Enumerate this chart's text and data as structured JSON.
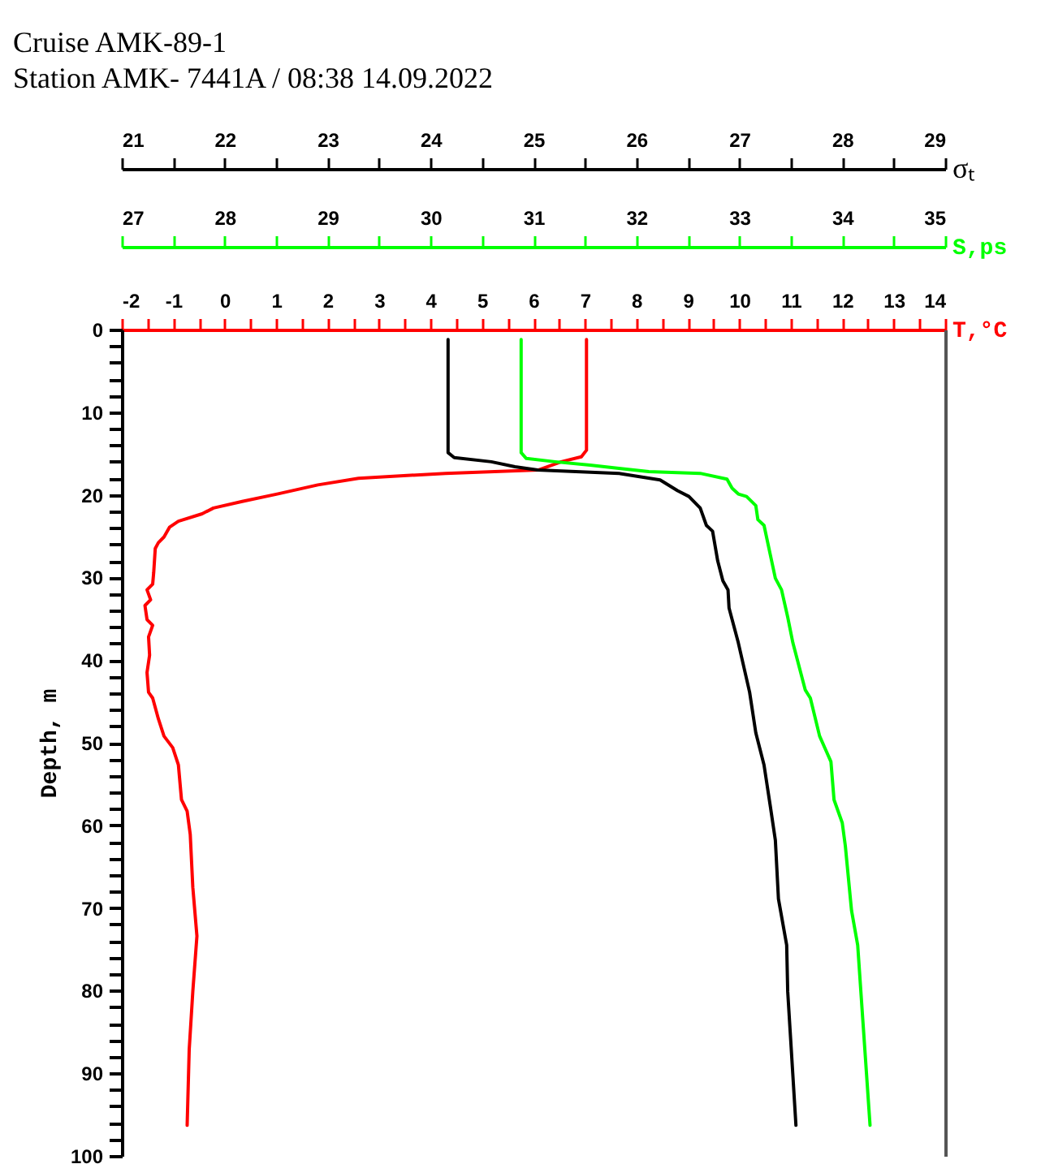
{
  "chart_data": [
    {
      "type": "line",
      "title": "Cruise AMK-89-1",
      "subtitle": "Station AMK- 7441A / 08:38 14.09.2022",
      "xlabel": "T,°C",
      "x2label": "S,ps",
      "ylabel": "Depth, m",
      "xlim": [
        -2,
        14
      ],
      "xticks": [
        -2,
        {
          "value": -1.5,
          "label": null
        },
        -1,
        {
          "value": -0.5,
          "label": null
        },
        0,
        {
          "value": 0.5,
          "label": null
        },
        1,
        {
          "value": 1.5,
          "label": null
        },
        2,
        {
          "value": 2.5,
          "label": null
        },
        3,
        {
          "value": 3.5,
          "label": null
        },
        4,
        {
          "value": 4.5,
          "label": null
        },
        5,
        {
          "value": 5.5,
          "label": null
        },
        6,
        {
          "value": 6.5,
          "label": null
        },
        7,
        {
          "value": 7.5,
          "label": null
        },
        8,
        {
          "value": 8.5,
          "label": null
        },
        9,
        {
          "value": 9.5,
          "label": null
        },
        10,
        {
          "value": 10.5,
          "label": null
        },
        11,
        {
          "value": 11.5,
          "label": null
        },
        12,
        {
          "value": 12.5,
          "label": null
        },
        13,
        {
          "value": 13.5,
          "label": null
        },
        14
      ],
      "x2lim": [
        27,
        35
      ],
      "x2ticks": [
        27,
        {
          "value": 27.5,
          "label": null
        },
        28,
        {
          "value": 28.5,
          "label": null
        },
        29,
        {
          "value": 29.5,
          "label": null
        },
        30,
        {
          "value": 30.5,
          "label": null
        },
        31,
        {
          "value": 31.5,
          "label": null
        },
        32,
        {
          "value": 32.5,
          "label": null
        },
        33,
        {
          "value": 33.5,
          "label": null
        },
        34,
        {
          "value": 34.5,
          "label": null
        },
        35
      ],
      "ylim": [
        100,
        0
      ],
      "yticks": [
        0,
        {
          "value": 2,
          "label": null
        },
        {
          "value": 4,
          "label": null
        },
        {
          "value": 6,
          "label": null
        },
        {
          "value": 8,
          "label": null
        },
        10,
        {
          "value": 12,
          "label": null
        },
        {
          "value": 14,
          "label": null
        },
        {
          "value": 16,
          "label": null
        },
        {
          "value": 18,
          "label": null
        },
        20,
        {
          "value": 22,
          "label": null
        },
        {
          "value": 24,
          "label": null
        },
        {
          "value": 26,
          "label": null
        },
        {
          "value": 28,
          "label": null
        },
        30,
        {
          "value": 32,
          "label": null
        },
        {
          "value": 34,
          "label": null
        },
        {
          "value": 36,
          "label": null
        },
        {
          "value": 38,
          "label": null
        },
        40,
        {
          "value": 42,
          "label": null
        },
        {
          "value": 44,
          "label": null
        },
        {
          "value": 46,
          "label": null
        },
        {
          "value": 48,
          "label": null
        },
        50,
        {
          "value": 52,
          "label": null
        },
        {
          "value": 54,
          "label": null
        },
        {
          "value": 56,
          "label": null
        },
        {
          "value": 58,
          "label": null
        },
        60,
        {
          "value": 62,
          "label": null
        },
        {
          "value": 64,
          "label": null
        },
        {
          "value": 66,
          "label": null
        },
        {
          "value": 68,
          "label": null
        },
        70,
        {
          "value": 72,
          "label": null
        },
        {
          "value": 74,
          "label": null
        },
        {
          "value": 76,
          "label": null
        },
        {
          "value": 78,
          "label": null
        },
        80,
        {
          "value": 82,
          "label": null
        },
        {
          "value": 84,
          "label": null
        },
        {
          "value": 86,
          "label": null
        },
        {
          "value": 88,
          "label": null
        },
        90,
        {
          "value": 92,
          "label": null
        },
        {
          "value": 94,
          "label": null
        },
        {
          "value": 96,
          "label": null
        },
        {
          "value": 98,
          "label": null
        },
        100
      ],
      "series": [
        {
          "color": "#ff0000",
          "x": [
            7.03,
            7.03,
            6.93,
            6.54,
            6.09,
            4.29,
            2.6,
            1.81,
            1.02,
            0.34,
            -0.22,
            -0.44,
            -0.9,
            -1.07,
            -1.18,
            -1.29,
            -1.35,
            -1.38,
            -1.4,
            -1.51,
            -1.44,
            -1.55,
            -1.51,
            -1.4,
            -1.48,
            -1.46,
            -1.51,
            -1.48,
            -1.4,
            -1.29,
            -1.18,
            -1.01,
            -0.9,
            -0.84,
            -0.73,
            -0.67,
            -0.62,
            -0.54,
            -0.62,
            -0.69,
            -0.73
          ],
          "values": [
            1.2,
            14.6,
            15.4,
            16,
            17,
            17.4,
            18,
            18.8,
            19.9,
            20.8,
            21.6,
            22.3,
            23.2,
            23.9,
            25.1,
            25.8,
            26.5,
            29.4,
            30.8,
            31.5,
            32.7,
            33.4,
            35.1,
            35.8,
            37.2,
            39.4,
            41.5,
            43.9,
            44.6,
            47.1,
            49.2,
            50.6,
            52.7,
            56.9,
            58.3,
            61.1,
            67.5,
            73.4,
            80.1,
            87.1,
            96.3
          ]
        },
        {
          "axis": "x2",
          "color": "#00ff00",
          "x": [
            30.88,
            30.88,
            30.93,
            31.21,
            31.55,
            31.83,
            32.12,
            32.62,
            32.88,
            32.93,
            32.99,
            33.07,
            33.16,
            33.18,
            33.24,
            33.3,
            33.35,
            33.41,
            33.47,
            33.52,
            33.64,
            33.69,
            33.78,
            33.89,
            33.92,
            34,
            34.03,
            34.09,
            34.15,
            34.2,
            34.27
          ],
          "values": [
            1.2,
            14.9,
            15.6,
            16,
            16.4,
            16.8,
            17.2,
            17.4,
            18.1,
            19.2,
            19.9,
            20.2,
            21.3,
            23,
            23.7,
            27.2,
            30.1,
            31.5,
            34.8,
            37.9,
            43.6,
            44.6,
            49.2,
            52.3,
            56.9,
            59.7,
            62.5,
            70.3,
            74.5,
            83.6,
            96.3
          ]
        }
      ]
    },
    {
      "type": "line",
      "xlabel": "σₜ",
      "tick_labels": "x",
      "xlim": [
        21,
        29
      ],
      "xticks": [
        21,
        {
          "value": 21.5,
          "label": null
        },
        22,
        {
          "value": 22.5,
          "label": null
        },
        23,
        {
          "value": 23.5,
          "label": null
        },
        24,
        {
          "value": 24.5,
          "label": null
        },
        25,
        {
          "value": 25.5,
          "label": null
        },
        26,
        {
          "value": 26.5,
          "label": null
        },
        27,
        {
          "value": 27.5,
          "label": null
        },
        28,
        {
          "value": 28.5,
          "label": null
        },
        29
      ],
      "ylim": [
        100,
        0
      ],
      "series": [
        {
          "color": "#000000",
          "x": [
            24.17,
            24.17,
            24.23,
            24.59,
            24.82,
            25.04,
            25.83,
            26.23,
            26.4,
            26.51,
            26.62,
            26.68,
            26.74,
            26.79,
            26.84,
            26.89,
            26.9,
            26.99,
            27.1,
            27.16,
            27.24,
            27.3,
            27.35,
            27.38,
            27.46,
            27.47,
            27.55
          ],
          "values": [
            1.2,
            14.9,
            15.5,
            16,
            16.6,
            17,
            17.4,
            18.2,
            19.5,
            20.2,
            21.6,
            23.7,
            24.4,
            28,
            30.4,
            31.5,
            33.7,
            37.9,
            43.9,
            48.8,
            52.7,
            57.6,
            61.8,
            68.9,
            74.5,
            80.1,
            96.3
          ]
        }
      ]
    }
  ]
}
